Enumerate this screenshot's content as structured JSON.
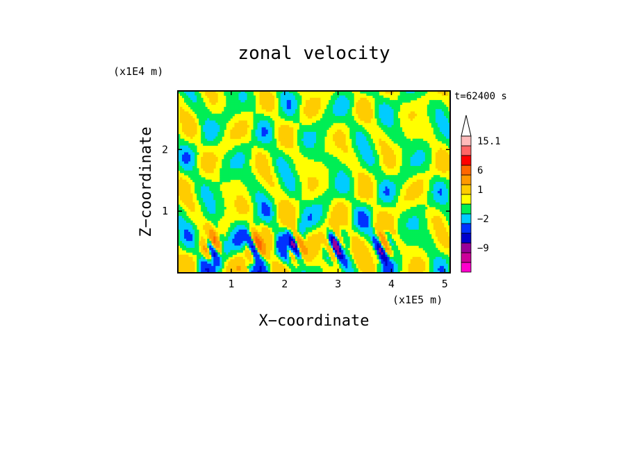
{
  "chart_data": {
    "type": "heatmap",
    "title": "zonal velocity",
    "time_label": "t=62400 s",
    "x_axis": {
      "label": "X−coordinate",
      "unit_label": "(x1E5 m)",
      "range": [
        0,
        5.1
      ],
      "ticks": [
        1,
        2,
        3,
        4,
        5
      ],
      "tick_labels": [
        "1",
        "2",
        "3",
        "4",
        "5"
      ]
    },
    "y_axis": {
      "label": "Z−coordinate",
      "unit_label": "(x1E4 m)",
      "range": [
        0,
        2.95
      ],
      "ticks": [
        1,
        2
      ],
      "tick_labels": [
        "1",
        "2"
      ]
    },
    "colorbar": {
      "orientation": "vertical",
      "open_ended": "top",
      "bands": [
        {
          "color": "#ff00cc",
          "value": -15
        },
        {
          "color": "#cc0099",
          "value": -12
        },
        {
          "color": "#990099",
          "value": -9
        },
        {
          "color": "#0000cc",
          "value": -6
        },
        {
          "color": "#0033ff",
          "value": -4
        },
        {
          "color": "#00ccff",
          "value": -2
        },
        {
          "color": "#00ee55",
          "value": -1
        },
        {
          "color": "#ffff00",
          "value": 0
        },
        {
          "color": "#ffcc00",
          "value": 1
        },
        {
          "color": "#ff9900",
          "value": 3
        },
        {
          "color": "#ff6600",
          "value": 6
        },
        {
          "color": "#ff0000",
          "value": 9
        },
        {
          "color": "#ff6666",
          "value": 12
        },
        {
          "color": "#ffbbbb",
          "value": 15.1
        }
      ],
      "labels": [
        "15.1",
        "6",
        "1",
        "−2",
        "−9"
      ]
    },
    "field_description_colors": {
      "background": "#ffff00",
      "secondary": "#00ee55"
    }
  }
}
